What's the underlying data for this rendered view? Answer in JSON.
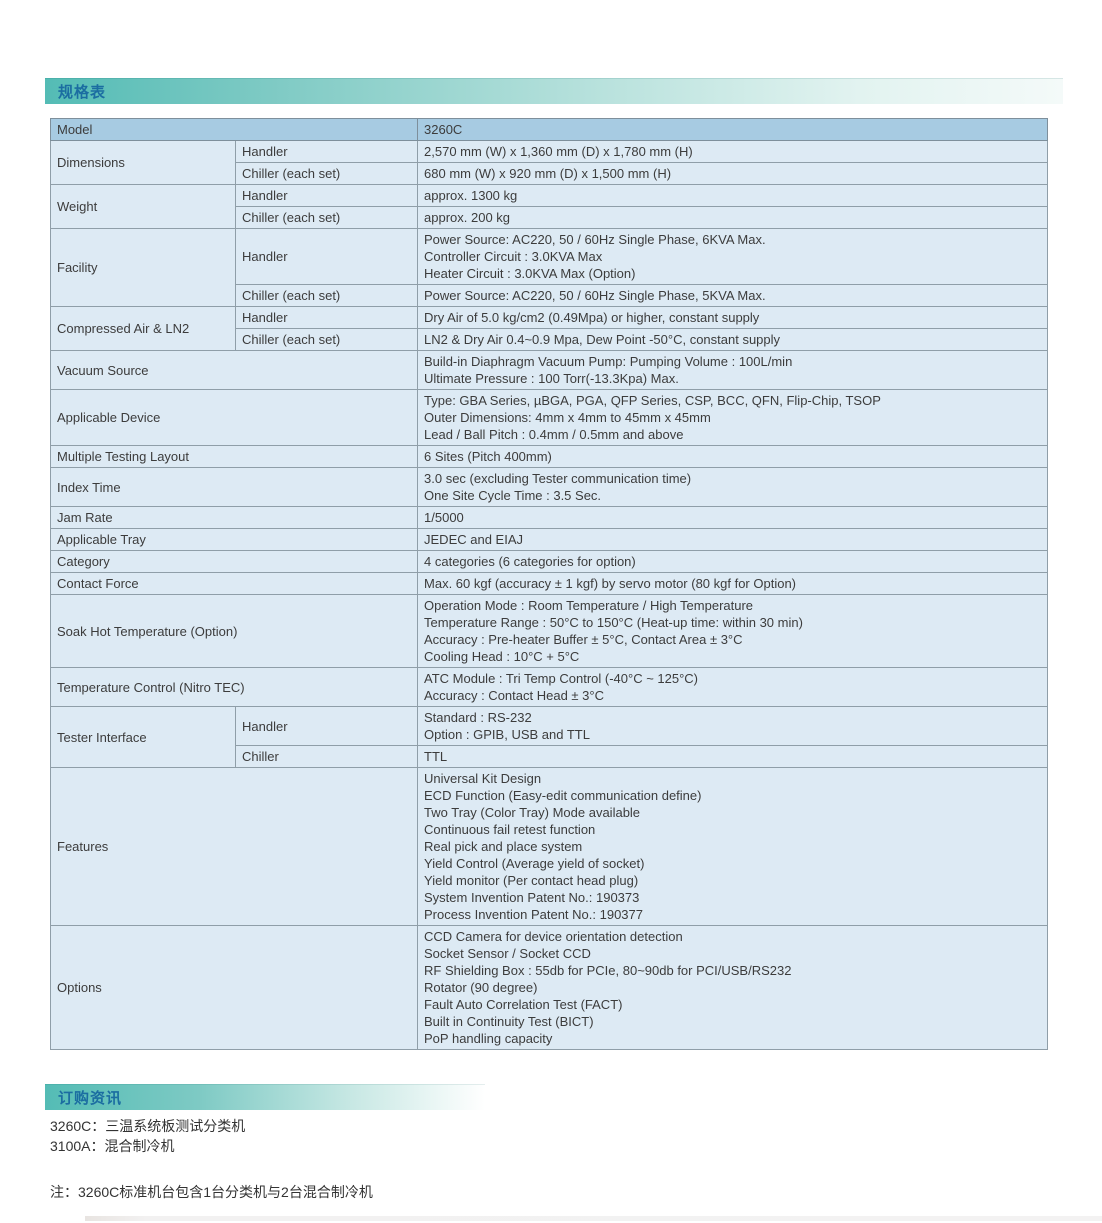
{
  "page": {
    "spec_header": "规格表",
    "order_header": "订购资讯",
    "order_lines": [
      "3260C：三温系统板测试分类机",
      "3100A：混合制冷机"
    ],
    "note": "注：3260C标准机台包含1台分类机与2台混合制冷机"
  },
  "colors": {
    "accent_teal": "#54bcb5",
    "header_text_blue": "#1b6da1",
    "table_header_bg": "#a7cbe2",
    "table_cell_bg": "#ddeaf4",
    "table_border": "#8f9ea8",
    "body_text": "#3c3c3c"
  },
  "spec_table": {
    "rows": [
      {
        "header": true,
        "label": "Model",
        "lines": [
          "3260C"
        ]
      },
      {
        "label": "Dimensions",
        "subs": [
          {
            "sub": "Handler",
            "lines": [
              "2,570 mm (W) x 1,360 mm (D) x 1,780 mm (H)"
            ]
          },
          {
            "sub": "Chiller (each set)",
            "lines": [
              "680 mm (W) x 920 mm (D) x 1,500 mm (H)"
            ]
          }
        ]
      },
      {
        "label": "Weight",
        "subs": [
          {
            "sub": "Handler",
            "lines": [
              "approx. 1300 kg"
            ]
          },
          {
            "sub": "Chiller (each set)",
            "lines": [
              "approx. 200 kg"
            ]
          }
        ]
      },
      {
        "label": "Facility",
        "subs": [
          {
            "sub": "Handler",
            "lines": [
              "Power Source: AC220, 50 / 60Hz Single Phase, 6KVA Max.",
              "Controller Circuit : 3.0KVA Max",
              "Heater Circuit : 3.0KVA Max (Option)"
            ]
          },
          {
            "sub": "Chiller (each set)",
            "lines": [
              "Power Source: AC220, 50 / 60Hz Single Phase, 5KVA Max."
            ]
          }
        ]
      },
      {
        "label": "Compressed Air & LN2",
        "subs": [
          {
            "sub": "Handler",
            "lines": [
              "Dry Air of 5.0 kg/cm2 (0.49Mpa) or higher, constant supply"
            ]
          },
          {
            "sub": "Chiller (each set)",
            "lines": [
              "LN2 & Dry Air 0.4~0.9 Mpa, Dew Point -50°C, constant supply"
            ]
          }
        ]
      },
      {
        "label": "Vacuum Source",
        "lines": [
          "Build-in Diaphragm Vacuum Pump: Pumping Volume : 100L/min",
          "Ultimate Pressure : 100 Torr(-13.3Kpa) Max."
        ]
      },
      {
        "label": "Applicable Device",
        "lines": [
          "Type: GBA Series, µBGA, PGA, QFP Series, CSP, BCC, QFN, Flip-Chip, TSOP",
          "Outer Dimensions: 4mm x 4mm to 45mm x 45mm",
          "Lead / Ball Pitch : 0.4mm / 0.5mm and above"
        ]
      },
      {
        "label": "Multiple Testing Layout",
        "lines": [
          "6 Sites (Pitch 400mm)"
        ]
      },
      {
        "label": "Index Time",
        "lines": [
          "3.0 sec (excluding Tester communication time)",
          "One Site Cycle Time : 3.5 Sec."
        ]
      },
      {
        "label": "Jam Rate",
        "lines": [
          "1/5000"
        ]
      },
      {
        "label": "Applicable Tray",
        "lines": [
          "JEDEC and EIAJ"
        ]
      },
      {
        "label": "Category",
        "lines": [
          "4 categories (6 categories for option)"
        ]
      },
      {
        "label": "Contact Force",
        "lines": [
          "Max. 60 kgf  (accuracy ± 1 kgf) by servo motor (80 kgf for Option)"
        ]
      },
      {
        "label": "Soak Hot Temperature (Option)",
        "lines": [
          "Operation Mode : Room Temperature / High Temperature",
          "Temperature Range : 50°C to 150°C (Heat-up time: within 30 min)",
          "Accuracy : Pre-heater Buffer ± 5°C, Contact Area ± 3°C",
          "Cooling Head : 10°C + 5°C"
        ]
      },
      {
        "label": "Temperature Control (Nitro TEC)",
        "lines": [
          "ATC Module : Tri Temp Control (-40°C ~ 125°C)",
          "Accuracy : Contact Head ± 3°C"
        ]
      },
      {
        "label": "Tester Interface",
        "subs": [
          {
            "sub": "Handler",
            "lines": [
              "Standard : RS-232",
              "Option : GPIB, USB and TTL"
            ]
          },
          {
            "sub": "Chiller",
            "lines": [
              "TTL"
            ]
          }
        ]
      },
      {
        "label": "Features",
        "lines": [
          "Universal Kit Design",
          "ECD Function (Easy-edit communication define)",
          "Two Tray (Color Tray) Mode available",
          "Continuous fail retest function",
          "Real pick and place system",
          "Yield Control (Average yield of socket)",
          "Yield monitor (Per contact head plug)",
          "System Invention Patent No.: 190373",
          "Process Invention Patent No.: 190377"
        ]
      },
      {
        "label": "Options",
        "lines": [
          "CCD Camera for device orientation detection",
          "Socket Sensor / Socket CCD",
          "RF Shielding Box : 55db for PCIe, 80~90db for PCI/USB/RS232",
          "Rotator (90 degree)",
          "Fault Auto Correlation Test (FACT)",
          "Built in Continuity Test (BICT)",
          "PoP handling capacity"
        ]
      }
    ]
  }
}
